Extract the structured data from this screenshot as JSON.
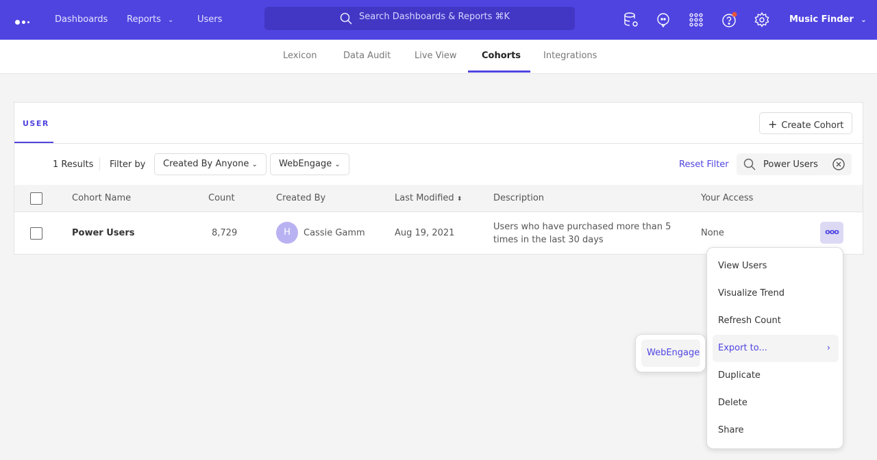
{
  "nav": {
    "items": [
      "Dashboards",
      "Reports",
      "Users"
    ],
    "search_placeholder": "Search Dashboards & Reports ⌘K",
    "project": "Music Finder",
    "brand_color": "#4f44e0",
    "icons": [
      "database-settings-icon",
      "chat-icon",
      "apps-grid-icon",
      "help-icon",
      "settings-icon"
    ]
  },
  "subnav": {
    "tabs": [
      "Lexicon",
      "Data Audit",
      "Live View",
      "Cohorts",
      "Integrations"
    ],
    "active": "Cohorts"
  },
  "card": {
    "tab": "USER",
    "create_label": "Create Cohort",
    "results": "1 Results",
    "filter_by": "Filter by",
    "filter_created": "Created By Anyone",
    "filter_integration": "WebEngage",
    "reset": "Reset Filter",
    "search_value": "Power Users"
  },
  "table": {
    "headers": [
      "Cohort Name",
      "Count",
      "Created By",
      "Last Modified",
      "Description",
      "Your Access"
    ],
    "rows": [
      {
        "name": "Power Users",
        "count": "8,729",
        "avatar": "H",
        "created_by": "Cassie Gamm",
        "modified": "Aug 19, 2021",
        "description": "Users who have purchased more than 5 times in the last 30 days",
        "access": "None"
      }
    ]
  },
  "menu": {
    "items": [
      "View Users",
      "Visualize Trend",
      "Refresh Count",
      "Export to...",
      "Duplicate",
      "Delete",
      "Share"
    ],
    "highlighted": "Export to..."
  },
  "submenu": {
    "items": [
      "WebEngage"
    ]
  }
}
